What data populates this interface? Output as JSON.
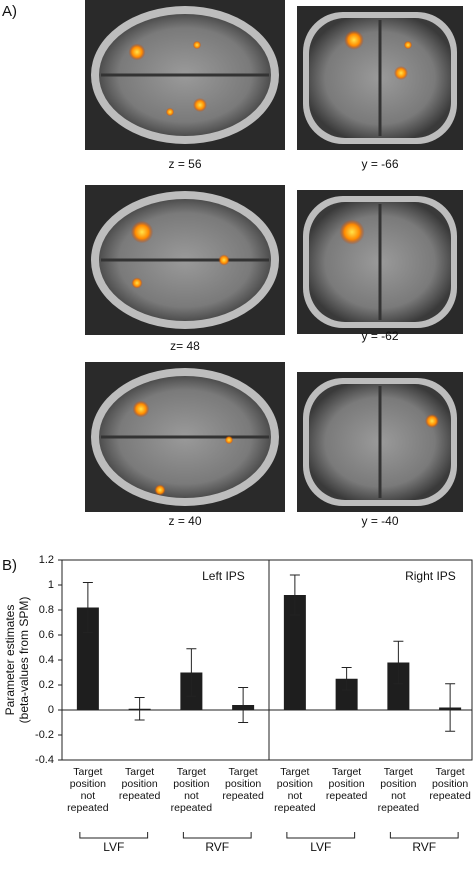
{
  "figure": {
    "panel_a_label": "A)",
    "panel_b_label": "B)",
    "slices": [
      "z = 56",
      "y = -66",
      "z= 48",
      "y = -62",
      "z = 40",
      "y = -40"
    ]
  },
  "chart_data": {
    "type": "bar",
    "ylabel": [
      "Parameter estimates",
      "(beta-values from SPM)"
    ],
    "ylim": [
      -0.4,
      1.2
    ],
    "yticks": [
      -0.4,
      -0.2,
      0,
      0.2,
      0.4,
      0.6,
      0.8,
      1,
      1.2
    ],
    "categories": [
      "Target position not repeated",
      "Target position repeated",
      "Target position not repeated",
      "Target position repeated"
    ],
    "groups": [
      "LVF",
      "RVF"
    ],
    "color": "#1e1e1e",
    "panels": [
      {
        "title": "Left IPS",
        "values": [
          0.82,
          0.01,
          0.3,
          0.04
        ],
        "errors": [
          0.2,
          0.09,
          0.19,
          0.14
        ]
      },
      {
        "title": "Right IPS",
        "values": [
          0.92,
          0.25,
          0.38,
          0.02
        ],
        "errors": [
          0.16,
          0.09,
          0.17,
          0.19
        ]
      }
    ]
  }
}
